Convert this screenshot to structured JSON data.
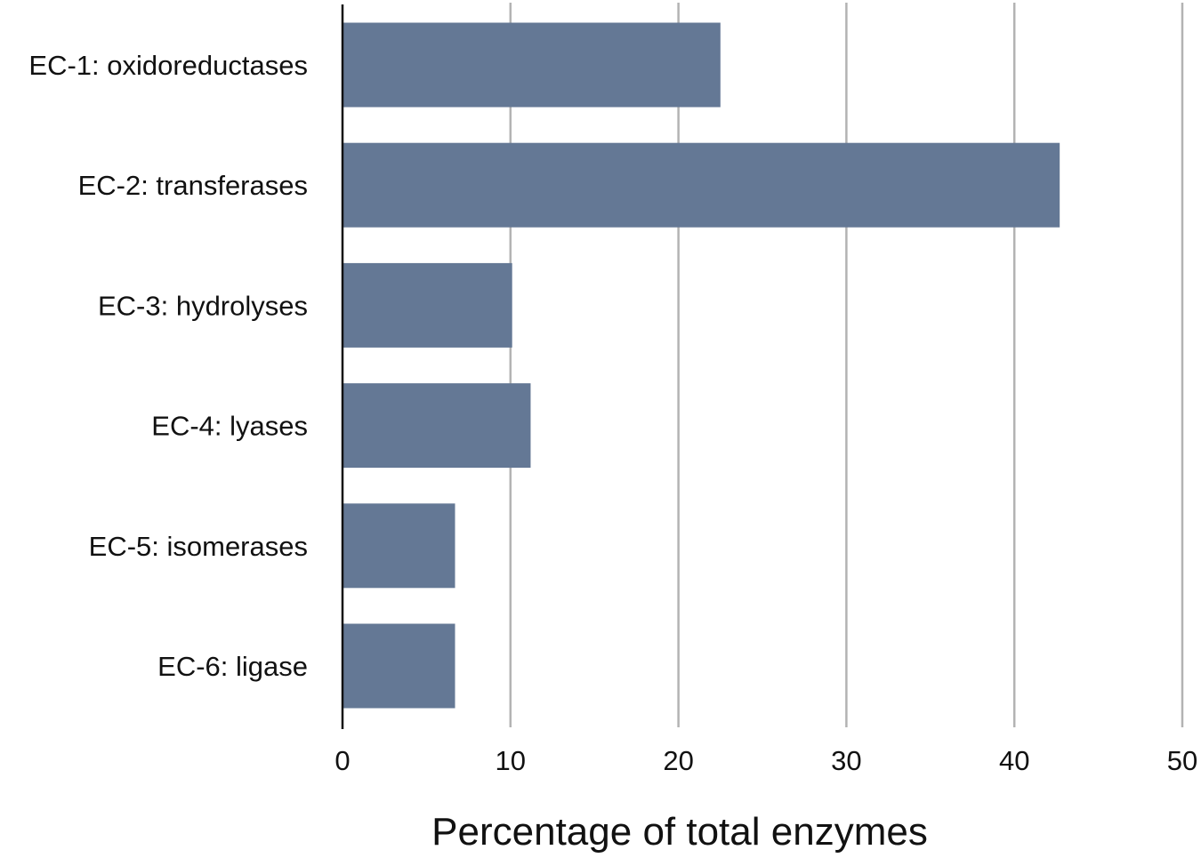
{
  "chart_data": {
    "type": "bar",
    "orientation": "horizontal",
    "categories": [
      "EC-1: oxidoreductases",
      "EC-2: transferases",
      "EC-3: hydrolyses",
      "EC-4: lyases",
      "EC-5: isomerases",
      "EC-6: ligase"
    ],
    "values": [
      22.5,
      42.7,
      10.1,
      11.2,
      6.7,
      6.7
    ],
    "xlabel": "Percentage of total enzymes",
    "ylabel": "",
    "xlim": [
      0,
      50
    ],
    "xticks": [
      0,
      10,
      20,
      30,
      40,
      50
    ],
    "xtick_labels": [
      "0",
      "10",
      "20",
      "30",
      "40",
      "50"
    ],
    "grid": "vertical",
    "bar_color": "#647895",
    "grid_color": "#b3b3b3",
    "axis_color": "#111111"
  }
}
